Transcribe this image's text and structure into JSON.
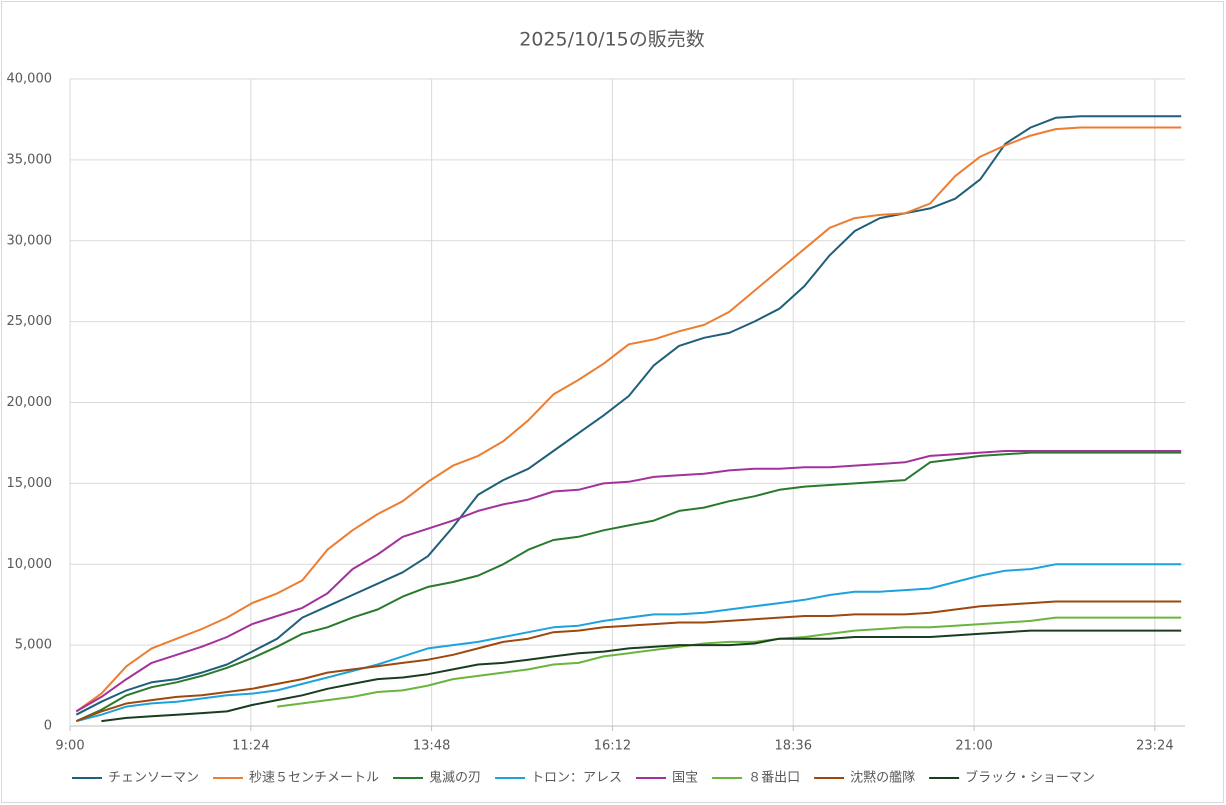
{
  "chart_data": {
    "type": "line",
    "title": "2025/10/15の販売数",
    "x": [
      545,
      565,
      585,
      605,
      625,
      645,
      665,
      685,
      705,
      725,
      745,
      765,
      785,
      805,
      825,
      845,
      865,
      885,
      905,
      925,
      945,
      965,
      985,
      1005,
      1025,
      1045,
      1065,
      1085,
      1105,
      1125,
      1145,
      1165,
      1185,
      1205,
      1225,
      1245,
      1265,
      1285,
      1305,
      1325,
      1345,
      1365,
      1385,
      1405,
      1425
    ],
    "series": [
      {
        "name": "チェンソーマン",
        "color": "#1f5f7a",
        "values": [
          700,
          1500,
          2200,
          2700,
          2900,
          3300,
          3800,
          4600,
          5400,
          6700,
          7400,
          8100,
          8800,
          9500,
          10500,
          12300,
          14300,
          15200,
          15900,
          17000,
          18100,
          19200,
          20400,
          22300,
          23500,
          24000,
          24300,
          25000,
          25800,
          27200,
          29100,
          30600,
          31400,
          31700,
          32000,
          32600,
          33800,
          36000,
          37000,
          37600,
          37700,
          37700,
          37700,
          37700,
          37700
        ]
      },
      {
        "name": "秒速５センチメートル",
        "color": "#ed7d31",
        "values": [
          900,
          2000,
          3700,
          4800,
          5400,
          6000,
          6700,
          7600,
          8200,
          9000,
          10900,
          12100,
          13100,
          13900,
          15100,
          16100,
          16700,
          17600,
          18900,
          20500,
          21400,
          22400,
          23600,
          23900,
          24400,
          24800,
          25600,
          26900,
          28200,
          29500,
          30800,
          31400,
          31600,
          31700,
          32300,
          34000,
          35200,
          35900,
          36500,
          36900,
          37000,
          37000,
          37000,
          37000,
          37000
        ]
      },
      {
        "name": "鬼滅の刃",
        "color": "#2a7a2e",
        "values": [
          300,
          1000,
          1900,
          2400,
          2700,
          3100,
          3600,
          4200,
          4900,
          5700,
          6100,
          6700,
          7200,
          8000,
          8600,
          8900,
          9300,
          10000,
          10900,
          11500,
          11700,
          12100,
          12400,
          12700,
          13300,
          13500,
          13900,
          14200,
          14600,
          14800,
          14900,
          15000,
          15100,
          15200,
          16300,
          16500,
          16700,
          16800,
          16900,
          16900,
          16900,
          16900,
          16900,
          16900,
          16900
        ]
      },
      {
        "name": "トロン：アレス",
        "color": "#1ea2dc",
        "values": [
          300,
          700,
          1200,
          1400,
          1500,
          1700,
          1900,
          2000,
          2200,
          2600,
          3000,
          3400,
          3800,
          4300,
          4800,
          5000,
          5200,
          5500,
          5800,
          6100,
          6200,
          6500,
          6700,
          6900,
          6900,
          7000,
          7200,
          7400,
          7600,
          7800,
          8100,
          8300,
          8300,
          8400,
          8500,
          8900,
          9300,
          9600,
          9700,
          10000,
          10000,
          10000,
          10000,
          10000,
          10000
        ]
      },
      {
        "name": "国宝",
        "color": "#a3329b",
        "values": [
          900,
          1800,
          2900,
          3900,
          4400,
          4900,
          5500,
          6300,
          6800,
          7300,
          8200,
          9700,
          10600,
          11700,
          12200,
          12700,
          13300,
          13700,
          14000,
          14500,
          14600,
          15000,
          15100,
          15400,
          15500,
          15600,
          15800,
          15900,
          15900,
          16000,
          16000,
          16100,
          16200,
          16300,
          16700,
          16800,
          16900,
          17000,
          17000,
          17000,
          17000,
          17000,
          17000,
          17000,
          17000
        ]
      },
      {
        "name": "８番出口",
        "color": "#6ab63c",
        "values": [
          null,
          null,
          null,
          null,
          null,
          null,
          null,
          null,
          1200,
          1400,
          1600,
          1800,
          2100,
          2200,
          2500,
          2900,
          3100,
          3300,
          3500,
          3800,
          3900,
          4300,
          4500,
          4700,
          4900,
          5100,
          5200,
          5200,
          5400,
          5500,
          5700,
          5900,
          6000,
          6100,
          6100,
          6200,
          6300,
          6400,
          6500,
          6700,
          6700,
          6700,
          6700,
          6700,
          6700
        ]
      },
      {
        "name": "沈黙の艦隊",
        "color": "#9e480e",
        "values": [
          300,
          900,
          1400,
          1600,
          1800,
          1900,
          2100,
          2300,
          2600,
          2900,
          3300,
          3500,
          3700,
          3900,
          4100,
          4400,
          4800,
          5200,
          5400,
          5800,
          5900,
          6100,
          6200,
          6300,
          6400,
          6400,
          6500,
          6600,
          6700,
          6800,
          6800,
          6900,
          6900,
          6900,
          7000,
          7200,
          7400,
          7500,
          7600,
          7700,
          7700,
          7700,
          7700,
          7700,
          7700
        ]
      },
      {
        "name": "ブラック・ショーマン",
        "color": "#1b3d1f",
        "values": [
          null,
          300,
          500,
          600,
          700,
          800,
          900,
          1300,
          1600,
          1900,
          2300,
          2600,
          2900,
          3000,
          3200,
          3500,
          3800,
          3900,
          4100,
          4300,
          4500,
          4600,
          4800,
          4900,
          5000,
          5000,
          5000,
          5100,
          5400,
          5400,
          5400,
          5500,
          5500,
          5500,
          5500,
          5600,
          5700,
          5800,
          5900,
          5900,
          5900,
          5900,
          5900,
          5900,
          5900
        ]
      }
    ],
    "xlim": [
      540,
      1428
    ],
    "xticks": [
      {
        "value": 540,
        "label": "9:00"
      },
      {
        "value": 684,
        "label": "11:24"
      },
      {
        "value": 828,
        "label": "13:48"
      },
      {
        "value": 972,
        "label": "16:12"
      },
      {
        "value": 1116,
        "label": "18:36"
      },
      {
        "value": 1260,
        "label": "21:00"
      },
      {
        "value": 1404,
        "label": "23:24"
      }
    ],
    "ylim": [
      0,
      40000
    ],
    "yticks": [
      0,
      {
        "value": 5000,
        "label": "5,000"
      },
      {
        "value": 10000,
        "label": "10,000"
      },
      {
        "value": 15000,
        "label": "15,000"
      },
      {
        "value": 20000,
        "label": "20,000"
      },
      {
        "value": 25000,
        "label": "25,000"
      },
      {
        "value": 30000,
        "label": "30,000"
      },
      {
        "value": 35000,
        "label": "35,000"
      },
      {
        "value": 40000,
        "label": "40,000"
      }
    ],
    "grid": true,
    "legend": "bottom"
  }
}
